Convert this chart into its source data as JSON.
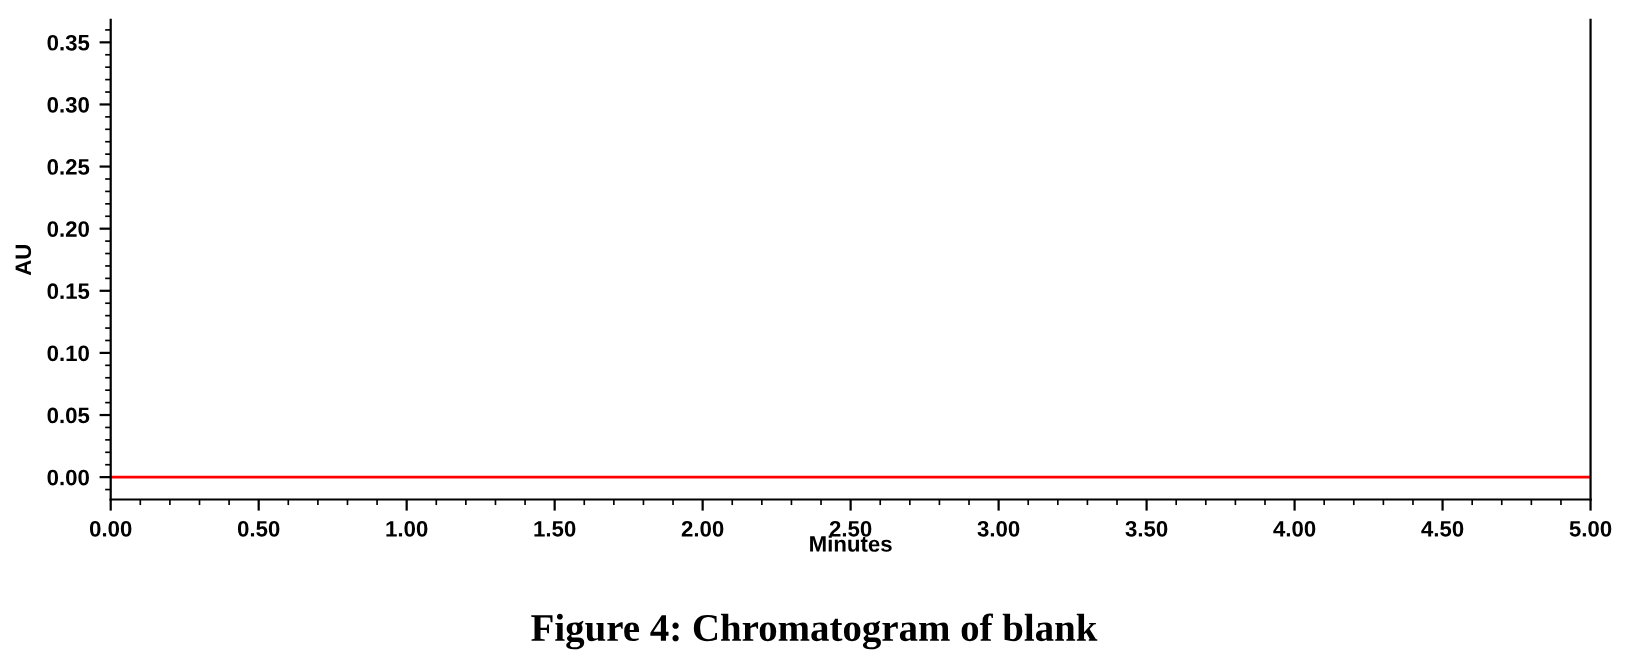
{
  "chart_data": {
    "type": "line",
    "title": "Figure 4: Chromatogram of blank",
    "xlabel": "Minutes",
    "ylabel": "AU",
    "x": [
      0,
      5
    ],
    "series": [
      {
        "color": "#ff0000",
        "values": [
          0,
          0
        ]
      }
    ],
    "xlim": [
      0,
      5
    ],
    "xticks": [
      {
        "value": 0,
        "label": "0.00"
      },
      {
        "value": 0.5,
        "label": "0.50"
      },
      {
        "value": 1,
        "label": "1.00"
      },
      {
        "value": 1.5,
        "label": "1.50"
      },
      {
        "value": 2,
        "label": "2.00"
      },
      {
        "value": 2.5,
        "label": "2.50"
      },
      {
        "value": 3,
        "label": "3.00"
      },
      {
        "value": 3.5,
        "label": "3.50"
      },
      {
        "value": 4,
        "label": "4.00"
      },
      {
        "value": 4.5,
        "label": "4.50"
      },
      {
        "value": 5,
        "label": "5.00"
      }
    ],
    "ylim": [
      -0.018,
      0.368
    ],
    "yticks": [
      {
        "value": 0,
        "label": "0.00"
      },
      {
        "value": 0.05,
        "label": "0.05"
      },
      {
        "value": 0.1,
        "label": "0.10"
      },
      {
        "value": 0.15,
        "label": "0.15"
      },
      {
        "value": 0.2,
        "label": "0.20"
      },
      {
        "value": 0.25,
        "label": "0.25"
      },
      {
        "value": 0.3,
        "label": "0.30"
      },
      {
        "value": 0.35,
        "label": "0.35"
      }
    ],
    "grid": false,
    "legend": false,
    "marker": "none",
    "line_style": "solid"
  }
}
